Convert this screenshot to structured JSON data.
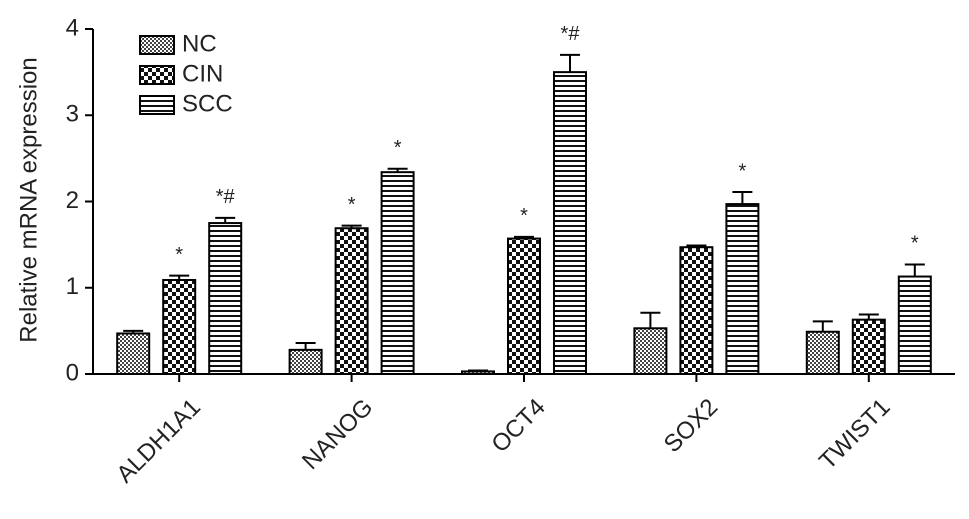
{
  "chart_data": {
    "type": "bar",
    "y_label": "Relative mRNA expression",
    "categories": [
      "ALDH1A1",
      "NANOG",
      "OCT4",
      "SOX2",
      "TWIST1"
    ],
    "series": [
      {
        "name": "NC",
        "color": "#000000",
        "values": [
          0.47,
          0.28,
          0.03,
          0.53,
          0.49
        ],
        "errors": [
          0.03,
          0.08,
          0.01,
          0.18,
          0.12
        ]
      },
      {
        "name": "CIN",
        "color": "#000000",
        "values": [
          1.09,
          1.69,
          1.57,
          1.47,
          0.63
        ],
        "errors": [
          0.05,
          0.03,
          0.02,
          0.02,
          0.06
        ],
        "annotations": [
          "*",
          "*",
          "*",
          null,
          null
        ]
      },
      {
        "name": "SCC",
        "color": "#000000",
        "values": [
          1.75,
          2.34,
          3.5,
          1.97,
          1.13
        ],
        "errors": [
          0.06,
          0.04,
          0.2,
          0.14,
          0.14
        ],
        "annotations": [
          "*#",
          "*",
          "*#",
          "*",
          "*"
        ]
      }
    ],
    "ylim": [
      0,
      4
    ],
    "yticks": [
      0,
      1,
      2,
      3,
      4
    ],
    "grid": false,
    "legend": "top-left"
  }
}
